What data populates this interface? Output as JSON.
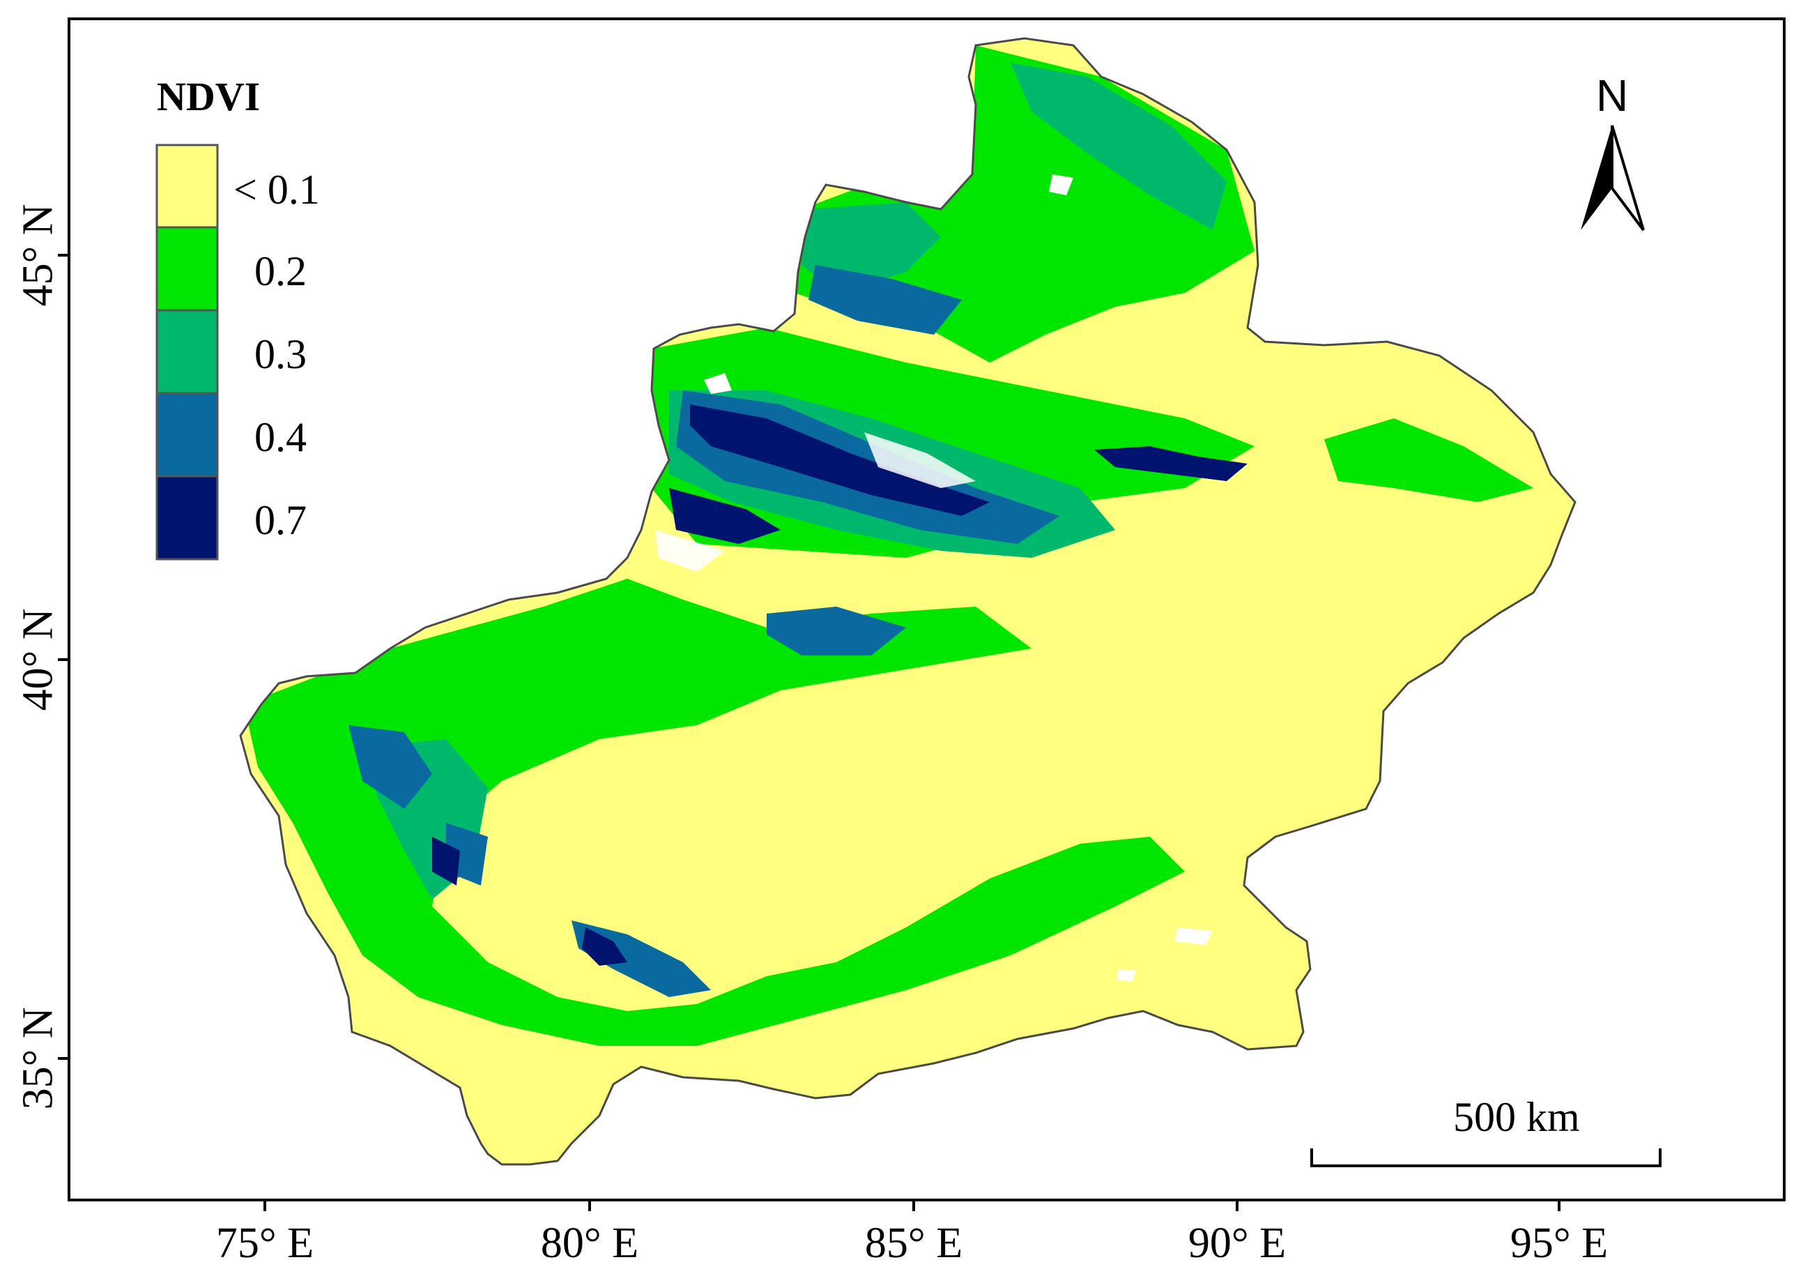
{
  "map": {
    "legend": {
      "title": "NDVI",
      "items": [
        {
          "label": "< 0.1",
          "color": "#ffff80"
        },
        {
          "label": "0.2",
          "color": "#00e600"
        },
        {
          "label": "0.3",
          "color": "#00b86b"
        },
        {
          "label": "0.4",
          "color": "#0a6aa0"
        },
        {
          "label": "0.7",
          "color": "#00136e"
        }
      ]
    },
    "y_ticks": [
      "45° N",
      "40° N",
      "35° N"
    ],
    "x_ticks": [
      "75° E",
      "80° E",
      "85° E",
      "90° E",
      "95° E"
    ],
    "north_arrow": {
      "label": "N",
      "icon": "north-arrow-icon"
    },
    "scale_bar": {
      "label": "500 km"
    }
  }
}
